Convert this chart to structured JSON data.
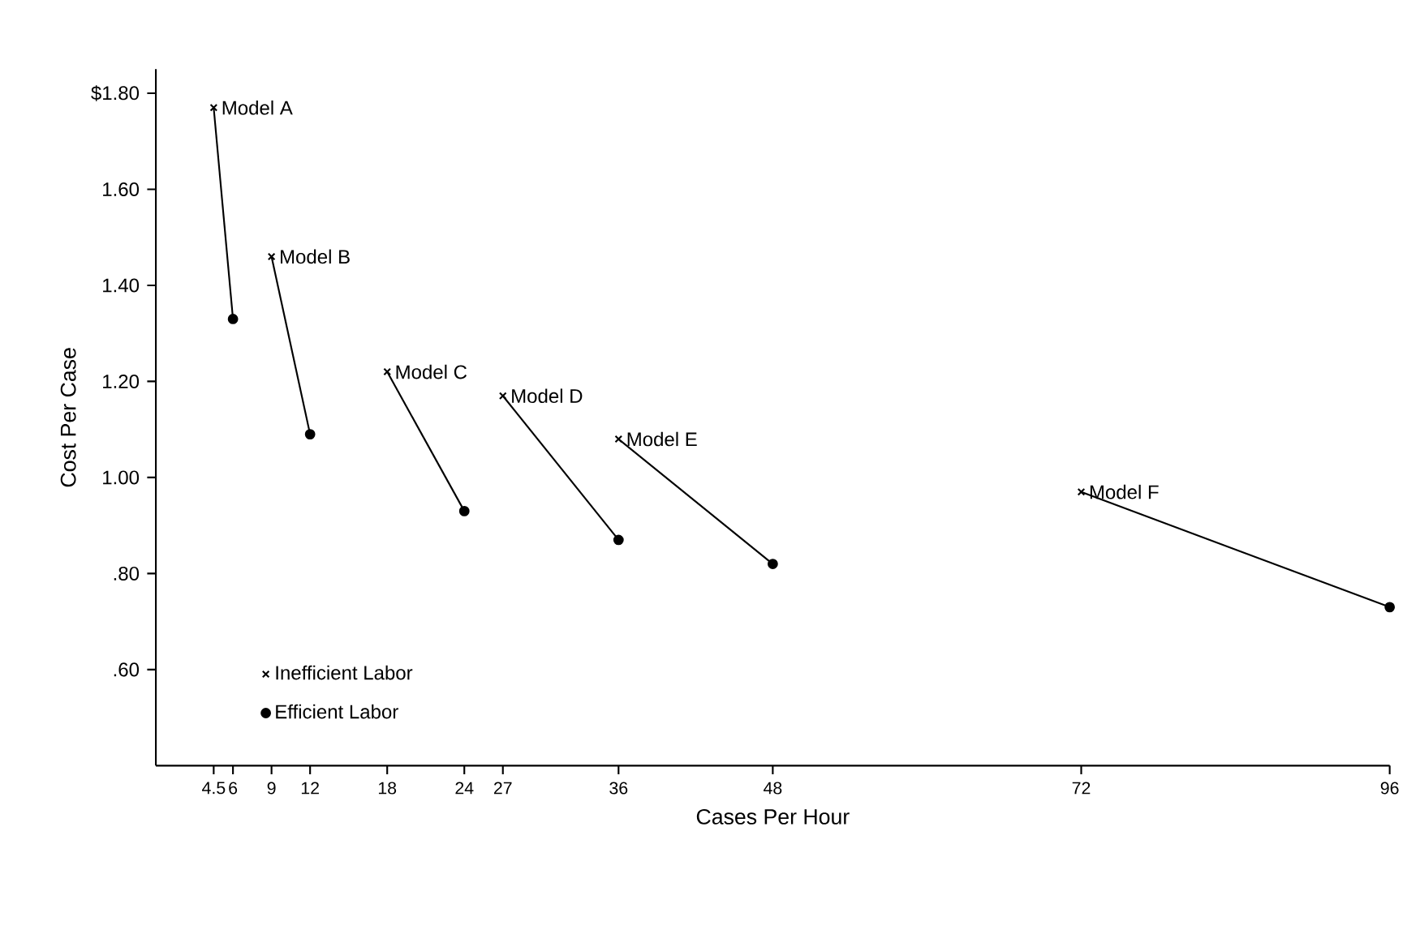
{
  "chart_data": {
    "type": "line",
    "xlabel": "Cases Per Hour",
    "ylabel": "Cost Per Case",
    "xlim": [
      0,
      96
    ],
    "ylim": [
      0.4,
      1.85
    ],
    "grid": false,
    "legend": "bottom left",
    "line_style": "solid",
    "xticks": [
      4.5,
      6,
      9,
      12,
      18,
      24,
      27,
      36,
      48,
      72,
      96
    ],
    "yticks": [
      {
        "value": 0.6,
        "label": ".60"
      },
      {
        "value": 0.8,
        "label": ".80"
      },
      {
        "value": 1.0,
        "label": "1.00"
      },
      {
        "value": 1.2,
        "label": "1.20"
      },
      {
        "value": 1.4,
        "label": "1.40"
      },
      {
        "value": 1.6,
        "label": "1.60"
      },
      {
        "value": 1.8,
        "label": "$1.80"
      }
    ],
    "series": [
      {
        "name": "Model A",
        "type": "line",
        "color": "#000000",
        "x": [
          4.5,
          6
        ],
        "values": [
          1.77,
          1.33
        ]
      },
      {
        "name": "Model B",
        "type": "line",
        "color": "#000000",
        "x": [
          9,
          12
        ],
        "values": [
          1.46,
          1.09
        ]
      },
      {
        "name": "Model C",
        "type": "line",
        "color": "#000000",
        "x": [
          18,
          24
        ],
        "values": [
          1.22,
          0.93
        ]
      },
      {
        "name": "Model D",
        "type": "line",
        "color": "#000000",
        "x": [
          27,
          36
        ],
        "values": [
          1.17,
          0.87
        ]
      },
      {
        "name": "Model E",
        "type": "line",
        "color": "#000000",
        "x": [
          36,
          48
        ],
        "values": [
          1.08,
          0.82
        ]
      },
      {
        "name": "Model F",
        "type": "line",
        "color": "#000000",
        "x": [
          72,
          96
        ],
        "values": [
          0.97,
          0.73
        ]
      },
      {
        "name": "Inefficient Labor",
        "type": "scatter",
        "marker": "cross",
        "color": "#000000",
        "x": [
          4.5,
          9,
          18,
          27,
          36,
          72
        ],
        "values": [
          1.77,
          1.46,
          1.22,
          1.17,
          1.08,
          0.97
        ]
      },
      {
        "name": "Efficient Labor",
        "type": "scatter",
        "marker": "circle",
        "color": "#000000",
        "x": [
          6,
          12,
          24,
          36,
          48,
          96
        ],
        "values": [
          1.33,
          1.09,
          0.93,
          0.87,
          0.82,
          0.73
        ]
      }
    ]
  }
}
